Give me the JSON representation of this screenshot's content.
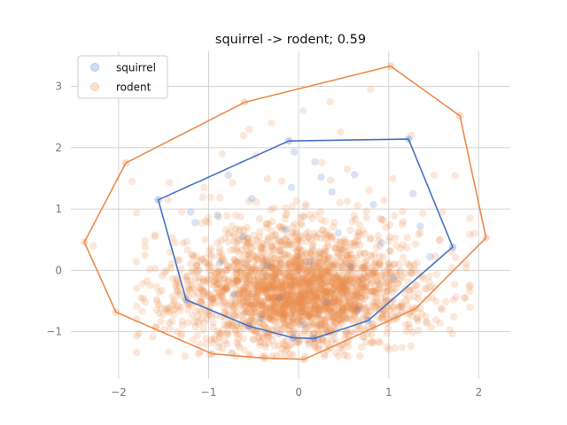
{
  "chart_data": {
    "type": "scatter",
    "title": "squirrel -> rodent; 0.59",
    "xlabel": "",
    "ylabel": "",
    "xlim": [
      -2.53,
      2.35
    ],
    "ylim": [
      -1.77,
      3.57
    ],
    "x_ticks": [
      -2,
      -1,
      0,
      1,
      2
    ],
    "y_ticks": [
      -1,
      0,
      1,
      2,
      3
    ],
    "grid": true,
    "legend_position": "upper-left",
    "series": [
      {
        "name": "squirrel",
        "color": "#4472c4",
        "point_alpha": 0.2,
        "hull": [
          [
            -1.56,
            1.15
          ],
          [
            -0.11,
            2.11
          ],
          [
            1.22,
            2.14
          ],
          [
            1.71,
            0.38
          ],
          [
            0.77,
            -0.82
          ],
          [
            0.17,
            -1.11
          ],
          [
            -0.06,
            -1.1
          ],
          [
            -0.55,
            -0.91
          ],
          [
            -1.25,
            -0.48
          ]
        ],
        "points": [
          [
            -0.05,
            1.93
          ],
          [
            0.18,
            1.77
          ],
          [
            0.62,
            1.56
          ],
          [
            1.27,
            1.25
          ],
          [
            -0.78,
            1.55
          ],
          [
            -0.52,
            1.17
          ],
          [
            -0.08,
            1.35
          ],
          [
            0.37,
            1.28
          ],
          [
            0.83,
            1.07
          ],
          [
            1.35,
            0.72
          ],
          [
            -1.15,
            0.78
          ],
          [
            -0.62,
            0.55
          ],
          [
            -0.15,
            0.66
          ],
          [
            0.44,
            0.61
          ],
          [
            0.92,
            0.45
          ],
          [
            1.46,
            0.22
          ],
          [
            -0.88,
            0.12
          ],
          [
            -0.35,
            0.08
          ],
          [
            0.12,
            0.14
          ],
          [
            0.58,
            0.06
          ],
          [
            1.05,
            -0.12
          ],
          [
            -0.72,
            -0.38
          ],
          [
            -0.21,
            -0.45
          ],
          [
            0.31,
            -0.52
          ],
          [
            0.66,
            -0.64
          ],
          [
            -0.42,
            -0.78
          ],
          [
            0.05,
            -0.88
          ],
          [
            -0.9,
            0.9
          ],
          [
            0.25,
            1.52
          ],
          [
            -1.2,
            0.95
          ]
        ]
      },
      {
        "name": "rodent",
        "color": "#ed8a4a",
        "point_alpha": 0.2,
        "hull": [
          [
            -2.38,
            0.46
          ],
          [
            -1.92,
            1.75
          ],
          [
            -0.6,
            2.74
          ],
          [
            1.02,
            3.33
          ],
          [
            1.79,
            2.52
          ],
          [
            2.08,
            0.53
          ],
          [
            1.3,
            -0.62
          ],
          [
            0.35,
            -1.26
          ],
          [
            0.06,
            -1.45
          ],
          [
            -0.38,
            -1.43
          ],
          [
            -0.96,
            -1.36
          ],
          [
            -2.03,
            -0.68
          ]
        ],
        "points": [
          [
            -1.6,
            0.55
          ],
          [
            -1.45,
            1.15
          ],
          [
            -1.3,
            0.95
          ],
          [
            -1.2,
            0.1
          ],
          [
            -1.05,
            1.35
          ],
          [
            -0.9,
            0.45
          ],
          [
            -0.85,
            1.9
          ],
          [
            -0.7,
            0.9
          ],
          [
            -0.55,
            2.3
          ],
          [
            -0.3,
            2.4
          ],
          [
            0.05,
            2.6
          ],
          [
            0.35,
            2.75
          ],
          [
            0.8,
            2.95
          ],
          [
            1.25,
            2.2
          ],
          [
            1.5,
            1.55
          ],
          [
            1.6,
            0.95
          ],
          [
            1.7,
            0.3
          ],
          [
            1.45,
            -0.2
          ],
          [
            1.05,
            -0.6
          ],
          [
            -1.75,
            -0.45
          ],
          [
            -1.55,
            -0.7
          ],
          [
            -1.35,
            -1.0
          ],
          [
            -1.1,
            -1.2
          ],
          [
            -0.6,
            -1.3
          ],
          [
            -0.2,
            -1.35
          ],
          [
            0.25,
            -1.2
          ],
          [
            -1.85,
            1.45
          ],
          [
            1.9,
            0.85
          ],
          [
            -2.28,
            0.4
          ],
          [
            1.95,
            0.6
          ]
        ],
        "cloud": {
          "center": [
            0.0,
            -0.45
          ],
          "spread": [
            0.62,
            0.42
          ],
          "count": 2400
        }
      }
    ]
  }
}
